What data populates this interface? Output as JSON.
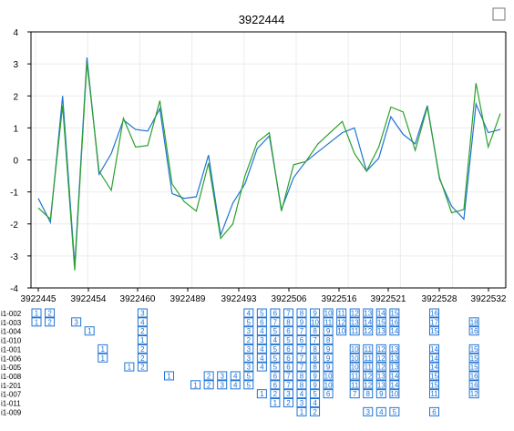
{
  "chart_data": {
    "type": "line",
    "title": "3922444",
    "xlabel": "",
    "ylabel": "",
    "ylim": [
      -4,
      4
    ],
    "yticks": [
      -4,
      -3,
      -2,
      -1,
      0,
      1,
      2,
      3,
      4
    ],
    "grid": true,
    "x_tick_labels": [
      "3922445",
      "3922454",
      "3922460",
      "3922489",
      "3922493",
      "3922506",
      "3922516",
      "3922521",
      "3922528",
      "3922532"
    ],
    "series": [
      {
        "color": "#1f74d6",
        "values": [
          -1.2,
          -1.95,
          2.0,
          -3.3,
          3.2,
          -0.45,
          0.2,
          1.25,
          0.95,
          0.9,
          1.6,
          -1.05,
          -1.2,
          -1.15,
          0.15,
          -2.35,
          -1.35,
          -0.75,
          0.35,
          0.75,
          -1.55,
          -0.55,
          -0.05,
          0.25,
          0.55,
          0.85,
          1.0,
          -0.35,
          0.05,
          1.35,
          0.8,
          0.5,
          1.7,
          -0.6,
          -1.45,
          -1.85,
          1.75,
          0.85,
          0.95
        ]
      },
      {
        "color": "#2ca02c",
        "values": [
          -1.5,
          -1.85,
          1.7,
          -3.45,
          3.05,
          -0.35,
          -0.95,
          1.3,
          0.4,
          0.45,
          1.85,
          -0.75,
          -1.3,
          -1.6,
          -0.1,
          -2.45,
          -2.0,
          -0.5,
          0.55,
          0.85,
          -1.6,
          -0.15,
          -0.05,
          0.5,
          0.85,
          1.2,
          0.2,
          -0.35,
          0.4,
          1.65,
          1.5,
          0.3,
          1.65,
          -0.55,
          -1.65,
          -1.55,
          2.4,
          0.4,
          1.45
        ]
      }
    ],
    "row_labels": [
      "i1-002",
      "i1-003",
      "i1-004",
      "i1-010",
      "i1-001",
      "i1-006",
      "i1-005",
      "i1-008",
      "i1-201",
      "i1-007",
      "i1-011",
      "i1-009"
    ],
    "sequence_rows": [
      [
        [
          1,
          1
        ],
        [
          2,
          2
        ],
        [
          9,
          3
        ],
        [
          17,
          4
        ],
        [
          18,
          5
        ],
        [
          19,
          6
        ],
        [
          20,
          7
        ],
        [
          21,
          8
        ],
        [
          22,
          9
        ],
        [
          23,
          10
        ],
        [
          24,
          11
        ],
        [
          25,
          12
        ],
        [
          26,
          13
        ],
        [
          27,
          14
        ],
        [
          28,
          15
        ],
        [
          31,
          16
        ]
      ],
      [
        [
          1,
          1
        ],
        [
          2,
          2
        ],
        [
          4,
          3
        ],
        [
          9,
          4
        ],
        [
          17,
          5
        ],
        [
          18,
          6
        ],
        [
          19,
          7
        ],
        [
          20,
          8
        ],
        [
          21,
          9
        ],
        [
          22,
          10
        ],
        [
          23,
          11
        ],
        [
          24,
          12
        ],
        [
          25,
          13
        ],
        [
          26,
          14
        ],
        [
          27,
          15
        ],
        [
          28,
          16
        ],
        [
          31,
          17
        ],
        [
          34,
          18
        ]
      ],
      [
        [
          5,
          1
        ],
        [
          9,
          2
        ],
        [
          17,
          3
        ],
        [
          18,
          4
        ],
        [
          19,
          5
        ],
        [
          20,
          6
        ],
        [
          21,
          7
        ],
        [
          22,
          8
        ],
        [
          23,
          9
        ],
        [
          24,
          10
        ],
        [
          25,
          11
        ],
        [
          26,
          12
        ],
        [
          27,
          13
        ],
        [
          28,
          14
        ],
        [
          31,
          15
        ],
        [
          34,
          16
        ]
      ],
      [
        [
          9,
          1
        ],
        [
          17,
          2
        ],
        [
          18,
          3
        ],
        [
          19,
          4
        ],
        [
          20,
          5
        ],
        [
          21,
          6
        ],
        [
          22,
          7
        ],
        [
          23,
          8
        ]
      ],
      [
        [
          6,
          1
        ],
        [
          9,
          2
        ],
        [
          17,
          3
        ],
        [
          18,
          4
        ],
        [
          19,
          5
        ],
        [
          20,
          6
        ],
        [
          21,
          7
        ],
        [
          22,
          8
        ],
        [
          23,
          9
        ],
        [
          25,
          10
        ],
        [
          26,
          11
        ],
        [
          27,
          12
        ],
        [
          28,
          13
        ],
        [
          31,
          14
        ],
        [
          34,
          15
        ]
      ],
      [
        [
          6,
          1
        ],
        [
          9,
          2
        ],
        [
          17,
          3
        ],
        [
          18,
          4
        ],
        [
          19,
          5
        ],
        [
          20,
          6
        ],
        [
          21,
          7
        ],
        [
          22,
          8
        ],
        [
          23,
          9
        ],
        [
          25,
          10
        ],
        [
          26,
          11
        ],
        [
          27,
          12
        ],
        [
          28,
          13
        ],
        [
          31,
          14
        ],
        [
          34,
          15
        ]
      ],
      [
        [
          8,
          1
        ],
        [
          9,
          2
        ],
        [
          17,
          3
        ],
        [
          18,
          4
        ],
        [
          19,
          5
        ],
        [
          20,
          6
        ],
        [
          21,
          7
        ],
        [
          22,
          8
        ],
        [
          23,
          9
        ],
        [
          25,
          10
        ],
        [
          26,
          11
        ],
        [
          27,
          12
        ],
        [
          28,
          13
        ],
        [
          31,
          14
        ],
        [
          34,
          15
        ]
      ],
      [
        [
          11,
          1
        ],
        [
          14,
          2
        ],
        [
          15,
          3
        ],
        [
          16,
          4
        ],
        [
          17,
          5
        ],
        [
          19,
          6
        ],
        [
          20,
          7
        ],
        [
          21,
          8
        ],
        [
          22,
          9
        ],
        [
          23,
          10
        ],
        [
          25,
          11
        ],
        [
          26,
          12
        ],
        [
          27,
          13
        ],
        [
          28,
          14
        ],
        [
          31,
          15
        ],
        [
          34,
          16
        ]
      ],
      [
        [
          13,
          1
        ],
        [
          14,
          2
        ],
        [
          15,
          3
        ],
        [
          16,
          4
        ],
        [
          17,
          5
        ],
        [
          19,
          6
        ],
        [
          20,
          7
        ],
        [
          21,
          8
        ],
        [
          22,
          9
        ],
        [
          23,
          10
        ],
        [
          25,
          11
        ],
        [
          26,
          12
        ],
        [
          27,
          13
        ],
        [
          28,
          14
        ],
        [
          31,
          15
        ],
        [
          34,
          16
        ]
      ],
      [
        [
          18,
          1
        ],
        [
          19,
          2
        ],
        [
          20,
          3
        ],
        [
          21,
          4
        ],
        [
          22,
          5
        ],
        [
          23,
          6
        ],
        [
          25,
          7
        ],
        [
          26,
          8
        ],
        [
          27,
          9
        ],
        [
          28,
          10
        ],
        [
          31,
          11
        ],
        [
          34,
          12
        ]
      ],
      [
        [
          19,
          1
        ],
        [
          20,
          2
        ],
        [
          21,
          3
        ],
        [
          22,
          4
        ]
      ],
      [
        [
          21,
          1
        ],
        [
          22,
          2
        ],
        [
          26,
          3
        ],
        [
          27,
          4
        ],
        [
          28,
          5
        ],
        [
          31,
          6
        ]
      ]
    ]
  },
  "ui": {
    "checkbox_checked": false
  }
}
